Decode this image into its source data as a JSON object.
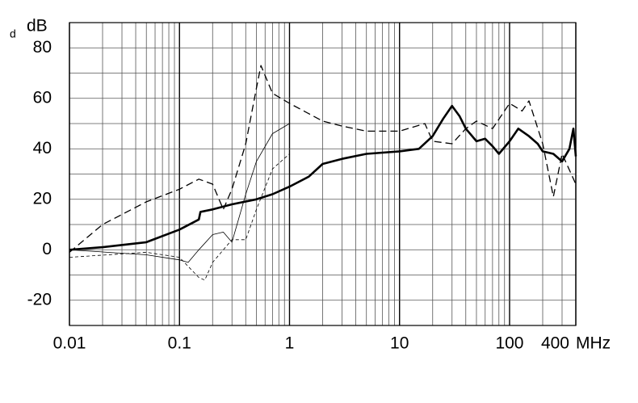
{
  "chart_data": {
    "type": "line",
    "corner_mark": "d",
    "ylabel": "dB",
    "xlabel": "MHz",
    "xlog": true,
    "xlim": [
      0.01,
      400
    ],
    "ylim": [
      -30,
      90
    ],
    "xticks": [
      0.01,
      0.1,
      1,
      10,
      100,
      400
    ],
    "yticks": [
      -20,
      0,
      20,
      40,
      60,
      80
    ],
    "grid": true,
    "series": [
      {
        "color": "#000000",
        "width": 2.6,
        "dash": "none",
        "x": [
          0.01,
          0.02,
          0.05,
          0.1,
          0.15,
          0.155,
          0.2,
          0.3,
          0.5,
          0.7,
          1,
          1.5,
          2,
          3,
          5,
          10,
          15,
          20,
          25,
          30,
          35,
          40,
          50,
          60,
          70,
          80,
          100,
          120,
          150,
          180,
          200,
          250,
          300,
          350,
          380,
          400
        ],
        "values": [
          0,
          1,
          3,
          8,
          12,
          15,
          16,
          18,
          20,
          22,
          25,
          29,
          34,
          36,
          38,
          39,
          40,
          45,
          52,
          57,
          53,
          48,
          43,
          44,
          41,
          38,
          43,
          48,
          45,
          42,
          39,
          38,
          35,
          40,
          48,
          37
        ]
      },
      {
        "color": "#000000",
        "width": 1.3,
        "dash": "long",
        "x": [
          0.01,
          0.02,
          0.05,
          0.1,
          0.15,
          0.2,
          0.25,
          0.3,
          0.4,
          0.5,
          0.55,
          0.7,
          1,
          2,
          3,
          5,
          10,
          17,
          20,
          30,
          40,
          50,
          70,
          100,
          130,
          150,
          200,
          250,
          300,
          400
        ],
        "values": [
          -1,
          10,
          19,
          24,
          28,
          26,
          16,
          24,
          42,
          64,
          73,
          62,
          58,
          51,
          49,
          47,
          47,
          50,
          43,
          42,
          48,
          51,
          48,
          58,
          55,
          59,
          42,
          21,
          38,
          26
        ]
      },
      {
        "color": "#000000",
        "width": 0.8,
        "dash": "none",
        "x": [
          0.01,
          0.05,
          0.1,
          0.12,
          0.15,
          0.2,
          0.25,
          0.3,
          0.4,
          0.5,
          0.7,
          1
        ],
        "values": [
          0,
          -2,
          -4,
          -5,
          0,
          6,
          7,
          3,
          22,
          35,
          46,
          50
        ]
      },
      {
        "color": "#000000",
        "width": 0.8,
        "dash": "short",
        "x": [
          0.01,
          0.05,
          0.1,
          0.15,
          0.17,
          0.2,
          0.3,
          0.4,
          0.5,
          0.7,
          1
        ],
        "values": [
          -3,
          -1,
          -3,
          -11,
          -12,
          -5,
          4,
          4,
          16,
          32,
          38
        ]
      }
    ]
  }
}
